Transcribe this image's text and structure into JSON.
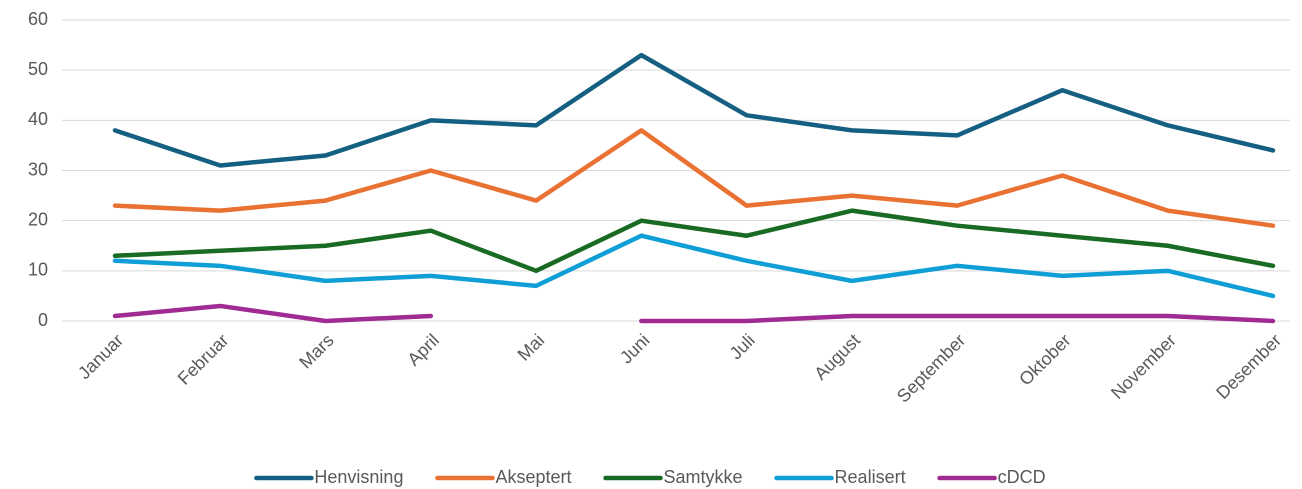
{
  "chart_data": {
    "type": "line",
    "categories": [
      "Januar",
      "Februar",
      "Mars",
      "April",
      "Mai",
      "Juni",
      "Juli",
      "August",
      "September",
      "Oktober",
      "November",
      "Desember"
    ],
    "series": [
      {
        "name": "Henvisning",
        "color": "#156082",
        "values": [
          38,
          31,
          33,
          40,
          39,
          53,
          41,
          38,
          37,
          46,
          39,
          34
        ]
      },
      {
        "name": "Akseptert",
        "color": "#e97132",
        "values": [
          23,
          22,
          24,
          30,
          24,
          38,
          23,
          25,
          23,
          29,
          22,
          19
        ]
      },
      {
        "name": "Samtykke",
        "color": "#196b24",
        "values": [
          13,
          14,
          15,
          18,
          10,
          20,
          17,
          22,
          19,
          17,
          15,
          11
        ]
      },
      {
        "name": "Realisert",
        "color": "#0f9ed5",
        "values": [
          12,
          11,
          8,
          9,
          7,
          17,
          12,
          8,
          11,
          9,
          10,
          5
        ]
      },
      {
        "name": "cDCD",
        "color": "#a02b93",
        "values": [
          1,
          3,
          0,
          1,
          null,
          0,
          0,
          1,
          1,
          1,
          1,
          0
        ]
      }
    ],
    "ylim": [
      0,
      60
    ],
    "yticks": [
      0,
      10,
      20,
      30,
      40,
      50,
      60
    ],
    "grid": true,
    "legend": "bottom"
  }
}
